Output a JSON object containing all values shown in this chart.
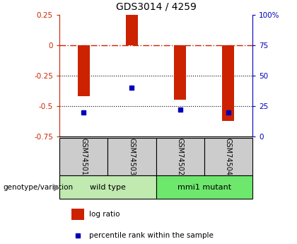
{
  "title": "GDS3014 / 4259",
  "samples": [
    "GSM74501",
    "GSM74503",
    "GSM74502",
    "GSM74504"
  ],
  "log_ratios": [
    -0.42,
    0.25,
    -0.45,
    -0.62
  ],
  "percentile_ranks": [
    20,
    40,
    22,
    20
  ],
  "groups": [
    {
      "label": "wild type",
      "indices": [
        0,
        1
      ],
      "color": "#c0eab0"
    },
    {
      "label": "mmi1 mutant",
      "indices": [
        2,
        3
      ],
      "color": "#6de86d"
    }
  ],
  "left_ylim": [
    -0.75,
    0.25
  ],
  "right_ylim": [
    0,
    100
  ],
  "left_yticks": [
    -0.75,
    -0.5,
    -0.25,
    0,
    0.25
  ],
  "right_yticks": [
    0,
    25,
    50,
    75,
    100
  ],
  "right_yticklabels": [
    "0",
    "25",
    "50",
    "75",
    "100%"
  ],
  "bar_color": "#cc2200",
  "dot_color": "#0000bb",
  "hline_color": "#cc2200",
  "dotted_lines": [
    -0.25,
    -0.5
  ],
  "bar_width": 0.25,
  "sample_bg_color": "#cccccc",
  "genotype_label": "genotype/variation"
}
